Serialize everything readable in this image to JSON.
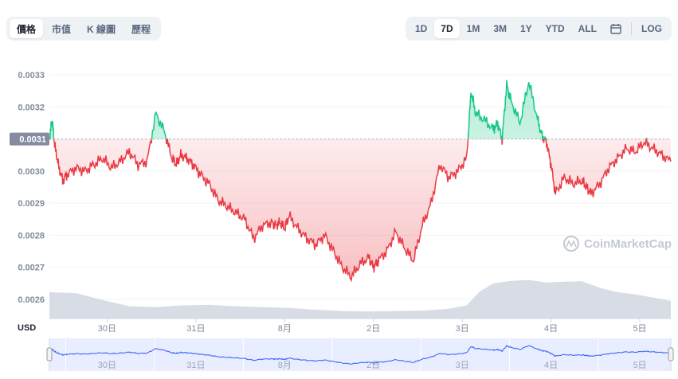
{
  "tabs": [
    {
      "label": "價格",
      "active": true
    },
    {
      "label": "市值",
      "active": false
    },
    {
      "label": "K 線圖",
      "active": false
    },
    {
      "label": "歷程",
      "active": false
    }
  ],
  "ranges": [
    {
      "label": "1D",
      "active": false
    },
    {
      "label": "7D",
      "active": true
    },
    {
      "label": "1M",
      "active": false
    },
    {
      "label": "3M",
      "active": false
    },
    {
      "label": "1Y",
      "active": false
    },
    {
      "label": "YTD",
      "active": false
    },
    {
      "label": "ALL",
      "active": false
    }
  ],
  "calendar_icon": "calendar-icon",
  "log_label": "LOG",
  "currency_label": "USD",
  "watermark_text": "CoinMarketCap",
  "colors": {
    "up": "#16c784",
    "down": "#ea3943",
    "volume": "#d3d8e2",
    "navigator": "#e8eeff",
    "navigator_line": "#3861fb",
    "grid": "#eff2f5",
    "axis_text": "#808a9d"
  },
  "chart_data": {
    "type": "line",
    "currency": "USD",
    "reference_price": 0.0031,
    "reference_price_label": "0.0031",
    "yticks": [
      0.0026,
      0.0027,
      0.0028,
      0.0029,
      0.003,
      0.0031,
      0.0032,
      0.0033
    ],
    "ytick_labels": [
      "0.0026",
      "0.0027",
      "0.0028",
      "0.0029",
      "0.0030",
      "0.0031",
      "0.0032",
      "0.0033"
    ],
    "ylim": [
      0.00254,
      0.00336
    ],
    "x_tick_labels": [
      "30日",
      "31日",
      "8月",
      "2日",
      "3日",
      "4日",
      "5日"
    ],
    "xlim": [
      0,
      7.0
    ],
    "x_ticks": [
      0.65,
      1.65,
      2.65,
      3.65,
      4.65,
      5.65,
      6.65
    ],
    "grid": true,
    "price": {
      "x": [
        0.0,
        0.03,
        0.06,
        0.1,
        0.15,
        0.2,
        0.3,
        0.4,
        0.5,
        0.6,
        0.7,
        0.8,
        0.9,
        1.0,
        1.1,
        1.2,
        1.3,
        1.38,
        1.43,
        1.48,
        1.55,
        1.62,
        1.7,
        1.8,
        1.9,
        2.0,
        2.1,
        2.2,
        2.3,
        2.4,
        2.5,
        2.55,
        2.6,
        2.65,
        2.7,
        2.8,
        2.9,
        3.0,
        3.1,
        3.2,
        3.3,
        3.4,
        3.5,
        3.6,
        3.65,
        3.7,
        3.8,
        3.9,
        4.0,
        4.1,
        4.2,
        4.3,
        4.4,
        4.5,
        4.6,
        4.7,
        4.75,
        4.8,
        4.9,
        5.0,
        5.05,
        5.1,
        5.15,
        5.2,
        5.3,
        5.4,
        5.5,
        5.55,
        5.6,
        5.65,
        5.7,
        5.8,
        5.9,
        6.0,
        6.05,
        6.1,
        6.2,
        6.3,
        6.4,
        6.5,
        6.6,
        6.7,
        6.8,
        6.9,
        7.0
      ],
      "values": [
        0.0031,
        0.00316,
        0.00308,
        0.00302,
        0.00297,
        0.00299,
        0.00301,
        0.003,
        0.00302,
        0.00304,
        0.00301,
        0.00303,
        0.00306,
        0.00302,
        0.00303,
        0.00318,
        0.00312,
        0.00304,
        0.00302,
        0.00305,
        0.00304,
        0.00302,
        0.00299,
        0.00296,
        0.00291,
        0.00289,
        0.00287,
        0.00285,
        0.00279,
        0.00283,
        0.00284,
        0.00283,
        0.00284,
        0.00282,
        0.00286,
        0.00282,
        0.00279,
        0.00277,
        0.0028,
        0.00275,
        0.0027,
        0.00267,
        0.00271,
        0.00273,
        0.0027,
        0.00272,
        0.00275,
        0.00281,
        0.00276,
        0.00272,
        0.00283,
        0.0029,
        0.00302,
        0.00298,
        0.003,
        0.00304,
        0.00325,
        0.00318,
        0.00316,
        0.00313,
        0.00315,
        0.0031,
        0.00327,
        0.00322,
        0.00315,
        0.00328,
        0.00316,
        0.00311,
        0.00309,
        0.00302,
        0.00293,
        0.00298,
        0.00296,
        0.00297,
        0.00295,
        0.00293,
        0.00296,
        0.00301,
        0.00304,
        0.00307,
        0.00306,
        0.00309,
        0.00307,
        0.00305,
        0.00303
      ]
    },
    "volume": {
      "x": [
        0.0,
        0.3,
        0.6,
        0.9,
        1.2,
        1.5,
        1.8,
        2.1,
        2.4,
        2.7,
        3.0,
        3.3,
        3.6,
        3.9,
        4.2,
        4.5,
        4.7,
        4.85,
        5.0,
        5.2,
        5.4,
        5.6,
        5.8,
        6.0,
        6.2,
        6.4,
        6.6,
        6.8,
        7.0
      ],
      "values": [
        0.6,
        0.58,
        0.42,
        0.28,
        0.26,
        0.3,
        0.31,
        0.28,
        0.26,
        0.24,
        0.2,
        0.17,
        0.16,
        0.17,
        0.18,
        0.22,
        0.3,
        0.62,
        0.8,
        0.86,
        0.88,
        0.82,
        0.84,
        0.85,
        0.7,
        0.6,
        0.55,
        0.48,
        0.4
      ]
    }
  }
}
